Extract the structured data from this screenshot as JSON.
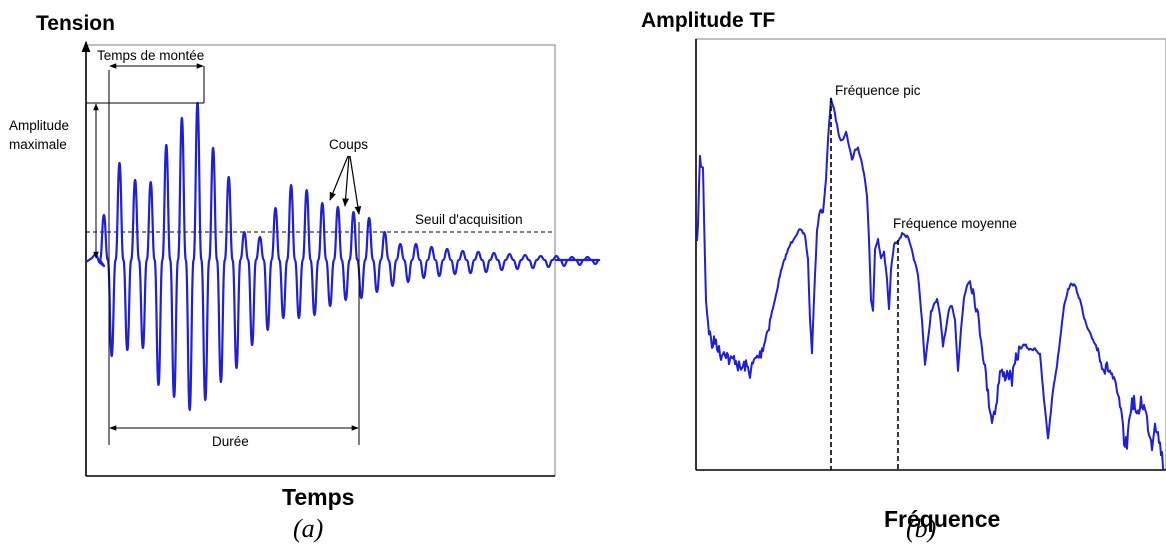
{
  "panel_a": {
    "y_label": "Tension",
    "x_label": "Temps",
    "caption": "(a)",
    "annotations": {
      "rise_time": "Temps de montée",
      "max_amplitude_line1": "Amplitude",
      "max_amplitude_line2": "maximale",
      "counts": "Coups",
      "threshold": "Seuil d'acquisition",
      "duration": "Durée"
    },
    "colors": {
      "signal": "#1f1fd6",
      "lines": "#000000"
    }
  },
  "panel_b": {
    "y_label": "Amplitude TF",
    "x_label": "Fréquence",
    "caption": "(b)",
    "annotations": {
      "peak_frequency": "Fréquence pic",
      "mean_frequency": "Fréquence moyenne"
    },
    "colors": {
      "spectrum": "#1f1fd6",
      "lines": "#000000"
    }
  }
}
